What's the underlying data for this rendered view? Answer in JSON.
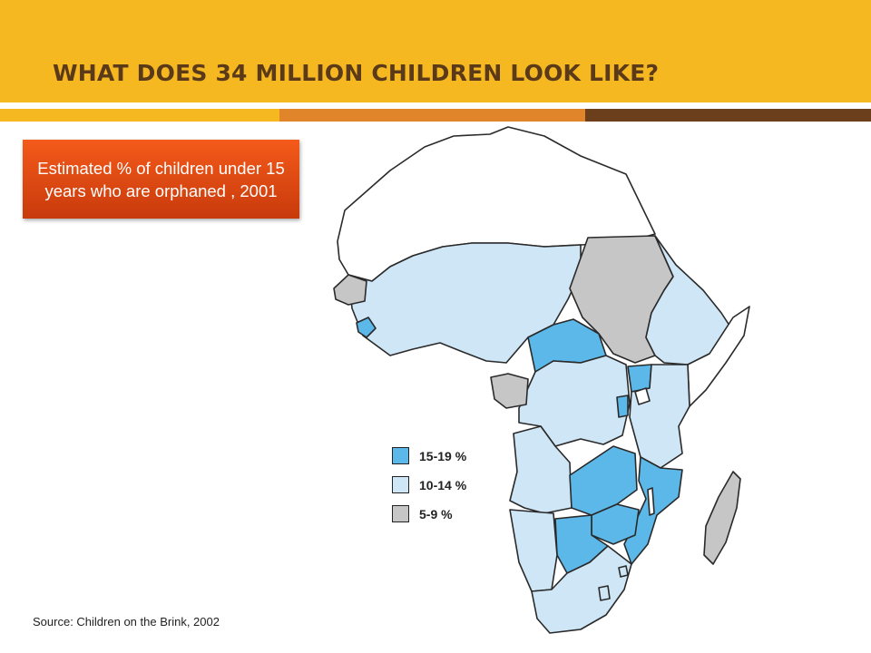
{
  "slide": {
    "title": "WHAT DOES 34 MILLION CHILDREN LOOK LIKE?",
    "caption": "Estimated % of children under 15 years who are orphaned , 2001",
    "source": "Source: Children on the Brink, 2002"
  },
  "colors": {
    "header": "#f6b820",
    "title_text": "#5b3a1a",
    "stripe_gold": "#f6b820",
    "stripe_orange": "#e0852a",
    "stripe_brown": "#6b3f1c",
    "caption_box": "#e04a12",
    "outline": "#2a2a2a"
  },
  "legend": [
    {
      "label": "15-19 %",
      "color": "#5bb8e8"
    },
    {
      "label": "10-14 %",
      "color": "#cfe6f7"
    },
    {
      "label": "5-9 %",
      "color": "#c6c6c6"
    }
  ],
  "map": {
    "regions": [
      {
        "id": "north-africa",
        "band": "none",
        "color": "#ffffff"
      },
      {
        "id": "west-africa",
        "band": "10-14 %",
        "color": "#cfe6f7"
      },
      {
        "id": "senegambia",
        "band": "5-9 %",
        "color": "#c6c6c6"
      },
      {
        "id": "sierra-leone",
        "band": "15-19 %",
        "color": "#5bb8e8"
      },
      {
        "id": "sudan",
        "band": "5-9 %",
        "color": "#c6c6c6"
      },
      {
        "id": "central-african-republic",
        "band": "15-19 %",
        "color": "#5bb8e8"
      },
      {
        "id": "ethiopia-eritrea",
        "band": "10-14 %",
        "color": "#cfe6f7"
      },
      {
        "id": "somalia",
        "band": "none",
        "color": "#ffffff"
      },
      {
        "id": "dr-congo",
        "band": "10-14 %",
        "color": "#cfe6f7"
      },
      {
        "id": "gabon-eq-guinea",
        "band": "5-9 %",
        "color": "#c6c6c6"
      },
      {
        "id": "uganda",
        "band": "15-19 %",
        "color": "#5bb8e8"
      },
      {
        "id": "rwanda-burundi",
        "band": "15-19 %",
        "color": "#5bb8e8"
      },
      {
        "id": "kenya-tanzania",
        "band": "10-14 %",
        "color": "#cfe6f7"
      },
      {
        "id": "angola",
        "band": "10-14 %",
        "color": "#cfe6f7"
      },
      {
        "id": "zambia",
        "band": "15-19 %",
        "color": "#5bb8e8"
      },
      {
        "id": "malawi-mozambique",
        "band": "15-19 %",
        "color": "#5bb8e8"
      },
      {
        "id": "zimbabwe",
        "band": "15-19 %",
        "color": "#5bb8e8"
      },
      {
        "id": "botswana",
        "band": "15-19 %",
        "color": "#5bb8e8"
      },
      {
        "id": "namibia",
        "band": "10-14 %",
        "color": "#cfe6f7"
      },
      {
        "id": "south-africa",
        "band": "10-14 %",
        "color": "#cfe6f7"
      },
      {
        "id": "madagascar",
        "band": "5-9 %",
        "color": "#c6c6c6"
      }
    ]
  }
}
